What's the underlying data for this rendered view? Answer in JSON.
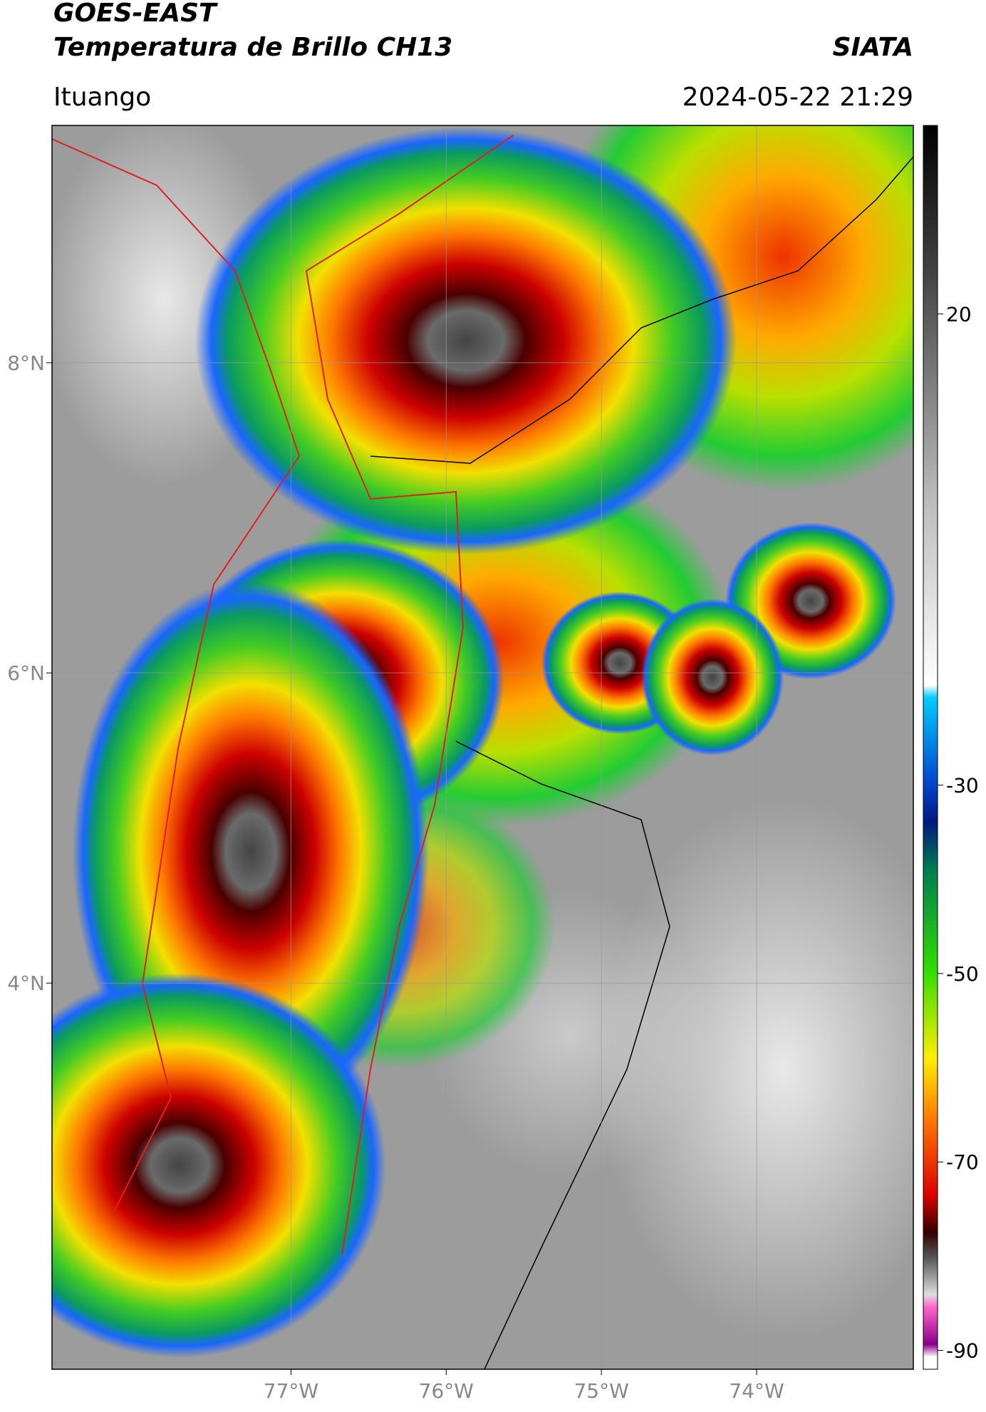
{
  "header": {
    "title": "GOES-EAST",
    "subtitle": "Temperatura de Brillo CH13",
    "source": "SIATA",
    "location": "Ituango",
    "datetime": "2024-05-22 21:29"
  },
  "map": {
    "xlim": [
      -78.54,
      -72.99
    ],
    "ylim": [
      1.51,
      9.53
    ],
    "xticks": [
      {
        "value": -77,
        "label": "77°W"
      },
      {
        "value": -76,
        "label": "76°W"
      },
      {
        "value": -75,
        "label": "75°W"
      },
      {
        "value": -74,
        "label": "74°W"
      }
    ],
    "yticks": [
      {
        "value": 8,
        "label": "8°N"
      },
      {
        "value": 6,
        "label": "6°N"
      },
      {
        "value": 4,
        "label": "4°N"
      }
    ]
  },
  "colorbar": {
    "range": [
      -92,
      40
    ],
    "ticks": [
      20,
      -30,
      -50,
      -70,
      -90
    ]
  }
}
